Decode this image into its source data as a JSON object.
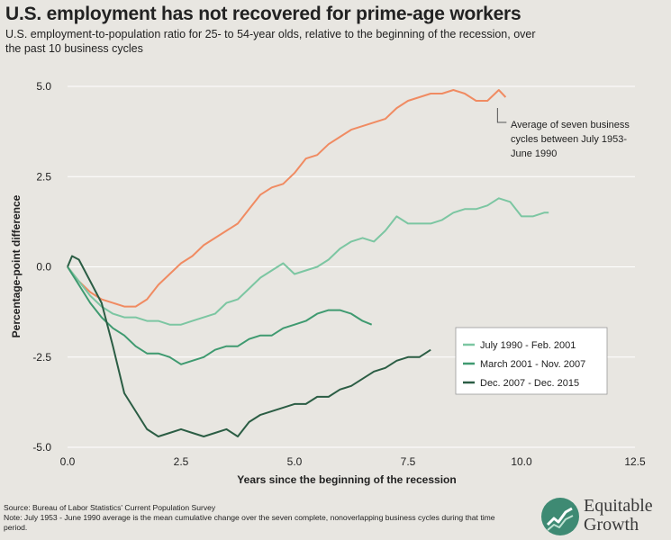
{
  "header": {
    "title": "U.S. employment has not recovered for prime-age workers",
    "subtitle": "U.S. employment-to-population ratio for 25- to 54-year olds, relative to the beginning of the recession, over the past 10 business cycles"
  },
  "footer": {
    "source": "Source: Bureau of Labor Statistics' Current Population Survey",
    "note": "Note: July 1953 - June 1990 average is the mean cumulative change over the seven complete, nonoverlapping business cycles during that time period."
  },
  "logo": {
    "line1": "Equitable",
    "line2": "Growth"
  },
  "chart_data": {
    "type": "line",
    "xlabel": "Years since the beginning of the recession",
    "ylabel": "Percentage-point difference",
    "xlim": [
      0,
      12.5
    ],
    "ylim": [
      -5,
      5
    ],
    "x_ticks": [
      0,
      2.5,
      5,
      7.5,
      10,
      12.5
    ],
    "x_tick_labels": [
      "0.0",
      "2.5",
      "5.0",
      "7.5",
      "10.0",
      "12.5"
    ],
    "y_ticks": [
      5,
      2.5,
      0,
      -2.5,
      -5
    ],
    "y_tick_labels": [
      "5.0",
      "2.5",
      "0.0",
      "-2.5",
      "-5.0"
    ],
    "grid": "horizontal",
    "legend_position": "right",
    "annotation": "Average of seven business cycles between July 1953- June 1990",
    "series": [
      {
        "label": "Average of seven business cycles between July 1953- June 1990",
        "color": "#f08b62",
        "in_legend": false,
        "points": [
          [
            0,
            0
          ],
          [
            0.25,
            -0.4
          ],
          [
            0.5,
            -0.7
          ],
          [
            0.75,
            -0.9
          ],
          [
            1.0,
            -1.0
          ],
          [
            1.25,
            -1.1
          ],
          [
            1.5,
            -1.1
          ],
          [
            1.75,
            -0.9
          ],
          [
            2.0,
            -0.5
          ],
          [
            2.25,
            -0.2
          ],
          [
            2.5,
            0.1
          ],
          [
            2.75,
            0.3
          ],
          [
            3.0,
            0.6
          ],
          [
            3.25,
            0.8
          ],
          [
            3.5,
            1.0
          ],
          [
            3.75,
            1.2
          ],
          [
            4.0,
            1.6
          ],
          [
            4.25,
            2.0
          ],
          [
            4.5,
            2.2
          ],
          [
            4.75,
            2.3
          ],
          [
            5.0,
            2.6
          ],
          [
            5.25,
            3.0
          ],
          [
            5.5,
            3.1
          ],
          [
            5.75,
            3.4
          ],
          [
            6.0,
            3.6
          ],
          [
            6.25,
            3.8
          ],
          [
            6.5,
            3.9
          ],
          [
            6.75,
            4.0
          ],
          [
            7.0,
            4.1
          ],
          [
            7.25,
            4.4
          ],
          [
            7.5,
            4.6
          ],
          [
            7.75,
            4.7
          ],
          [
            8.0,
            4.8
          ],
          [
            8.25,
            4.8
          ],
          [
            8.5,
            4.9
          ],
          [
            8.75,
            4.8
          ],
          [
            9.0,
            4.6
          ],
          [
            9.25,
            4.6
          ],
          [
            9.5,
            4.9
          ],
          [
            9.65,
            4.7
          ]
        ]
      },
      {
        "label": "July 1990 - Feb. 2001",
        "color": "#7cc6a2",
        "in_legend": true,
        "points": [
          [
            0,
            0
          ],
          [
            0.25,
            -0.4
          ],
          [
            0.5,
            -0.8
          ],
          [
            0.75,
            -1.1
          ],
          [
            1.0,
            -1.3
          ],
          [
            1.25,
            -1.4
          ],
          [
            1.5,
            -1.4
          ],
          [
            1.75,
            -1.5
          ],
          [
            2.0,
            -1.5
          ],
          [
            2.25,
            -1.6
          ],
          [
            2.5,
            -1.6
          ],
          [
            2.75,
            -1.5
          ],
          [
            3.0,
            -1.4
          ],
          [
            3.25,
            -1.3
          ],
          [
            3.5,
            -1.0
          ],
          [
            3.75,
            -0.9
          ],
          [
            4.0,
            -0.6
          ],
          [
            4.25,
            -0.3
          ],
          [
            4.5,
            -0.1
          ],
          [
            4.75,
            0.1
          ],
          [
            5.0,
            -0.2
          ],
          [
            5.25,
            -0.1
          ],
          [
            5.5,
            0.0
          ],
          [
            5.75,
            0.2
          ],
          [
            6.0,
            0.5
          ],
          [
            6.25,
            0.7
          ],
          [
            6.5,
            0.8
          ],
          [
            6.75,
            0.7
          ],
          [
            7.0,
            1.0
          ],
          [
            7.25,
            1.4
          ],
          [
            7.5,
            1.2
          ],
          [
            7.75,
            1.2
          ],
          [
            8.0,
            1.2
          ],
          [
            8.25,
            1.3
          ],
          [
            8.5,
            1.5
          ],
          [
            8.75,
            1.6
          ],
          [
            9.0,
            1.6
          ],
          [
            9.25,
            1.7
          ],
          [
            9.5,
            1.9
          ],
          [
            9.75,
            1.8
          ],
          [
            10.0,
            1.4
          ],
          [
            10.25,
            1.4
          ],
          [
            10.5,
            1.5
          ],
          [
            10.6,
            1.5
          ]
        ]
      },
      {
        "label": "March 2001 - Nov. 2007",
        "color": "#3f9a70",
        "in_legend": true,
        "points": [
          [
            0,
            0
          ],
          [
            0.25,
            -0.5
          ],
          [
            0.5,
            -1.0
          ],
          [
            0.75,
            -1.4
          ],
          [
            1.0,
            -1.7
          ],
          [
            1.25,
            -1.9
          ],
          [
            1.5,
            -2.2
          ],
          [
            1.75,
            -2.4
          ],
          [
            2.0,
            -2.4
          ],
          [
            2.25,
            -2.5
          ],
          [
            2.5,
            -2.7
          ],
          [
            2.75,
            -2.6
          ],
          [
            3.0,
            -2.5
          ],
          [
            3.25,
            -2.3
          ],
          [
            3.5,
            -2.2
          ],
          [
            3.75,
            -2.2
          ],
          [
            4.0,
            -2.0
          ],
          [
            4.25,
            -1.9
          ],
          [
            4.5,
            -1.9
          ],
          [
            4.75,
            -1.7
          ],
          [
            5.0,
            -1.6
          ],
          [
            5.25,
            -1.5
          ],
          [
            5.5,
            -1.3
          ],
          [
            5.75,
            -1.2
          ],
          [
            6.0,
            -1.2
          ],
          [
            6.25,
            -1.3
          ],
          [
            6.5,
            -1.5
          ],
          [
            6.7,
            -1.6
          ]
        ]
      },
      {
        "label": "Dec. 2007 - Dec. 2015",
        "color": "#2b5d44",
        "in_legend": true,
        "points": [
          [
            0,
            0
          ],
          [
            0.1,
            0.3
          ],
          [
            0.25,
            0.2
          ],
          [
            0.5,
            -0.4
          ],
          [
            0.75,
            -1.0
          ],
          [
            1.0,
            -2.2
          ],
          [
            1.25,
            -3.5
          ],
          [
            1.5,
            -4.0
          ],
          [
            1.75,
            -4.5
          ],
          [
            2.0,
            -4.7
          ],
          [
            2.25,
            -4.6
          ],
          [
            2.5,
            -4.5
          ],
          [
            2.75,
            -4.6
          ],
          [
            3.0,
            -4.7
          ],
          [
            3.25,
            -4.6
          ],
          [
            3.5,
            -4.5
          ],
          [
            3.75,
            -4.7
          ],
          [
            4.0,
            -4.3
          ],
          [
            4.25,
            -4.1
          ],
          [
            4.5,
            -4.0
          ],
          [
            4.75,
            -3.9
          ],
          [
            5.0,
            -3.8
          ],
          [
            5.25,
            -3.8
          ],
          [
            5.5,
            -3.6
          ],
          [
            5.75,
            -3.6
          ],
          [
            6.0,
            -3.4
          ],
          [
            6.25,
            -3.3
          ],
          [
            6.5,
            -3.1
          ],
          [
            6.75,
            -2.9
          ],
          [
            7.0,
            -2.8
          ],
          [
            7.25,
            -2.6
          ],
          [
            7.5,
            -2.5
          ],
          [
            7.75,
            -2.5
          ],
          [
            8.0,
            -2.3
          ]
        ]
      }
    ]
  }
}
